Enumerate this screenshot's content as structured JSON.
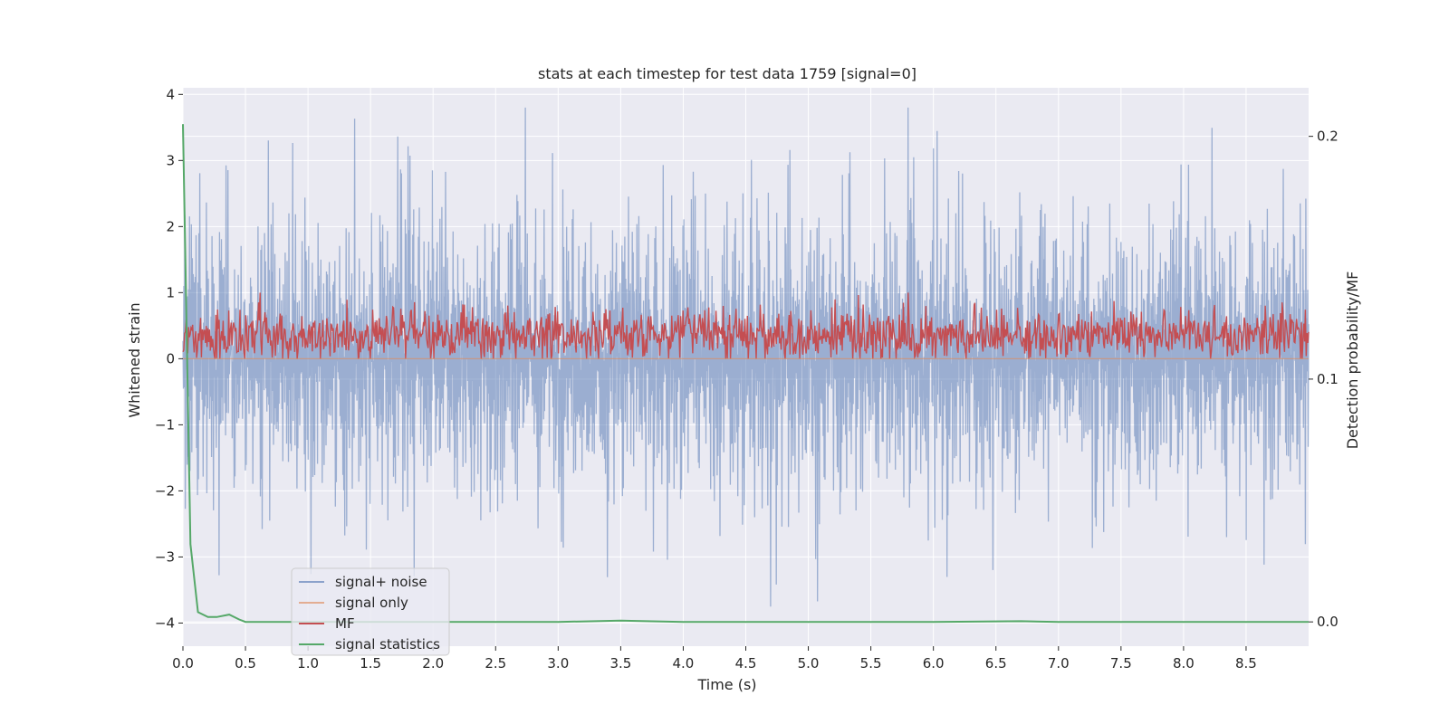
{
  "chart_data": {
    "type": "line",
    "title": "stats at each timestep for test data 1759 [signal=0]",
    "xlabel": "Time (s)",
    "ylabel": "Whitened strain",
    "y2label": "Detection probability/MF",
    "xlim": [
      0,
      9.0
    ],
    "ylim": [
      -4.35,
      4.1
    ],
    "y2lim": [
      -0.01,
      0.22
    ],
    "x_ticks": [
      "0.0",
      "0.5",
      "1.0",
      "1.5",
      "2.0",
      "2.5",
      "3.0",
      "3.5",
      "4.0",
      "4.5",
      "5.0",
      "5.5",
      "6.0",
      "6.5",
      "7.0",
      "7.5",
      "8.0",
      "8.5"
    ],
    "y_ticks": [
      "4",
      "3",
      "2",
      "1",
      "0",
      "−1",
      "−2",
      "−3",
      "−4"
    ],
    "y2_ticks": [
      "0.2",
      "0.1",
      "0.0"
    ],
    "grid": true,
    "legend_position": "lower-left",
    "series": [
      {
        "name": "signal+ noise",
        "color": "#4c72b0",
        "description": "whitened noise, approx. range -4.1 to 3.8",
        "x_range": [
          0,
          9.0
        ],
        "approx_y_range": [
          -4.1,
          3.8
        ]
      },
      {
        "name": "signal only",
        "color": "#dd8452",
        "approx_y_range": [
          0,
          0
        ]
      },
      {
        "name": "MF",
        "color": "#c44e52",
        "approx_y_range": [
          0.0,
          1.0
        ]
      },
      {
        "name": "signal statistics",
        "color": "#55a868",
        "x": [
          0.0,
          0.03,
          0.06,
          0.12,
          0.2,
          0.27,
          0.37,
          0.45,
          0.5,
          1.0,
          2.0,
          3.0,
          3.5,
          4.0,
          5.0,
          6.0,
          6.7,
          7.0,
          8.0,
          9.0
        ],
        "y": [
          0.205,
          0.12,
          0.032,
          0.004,
          0.002,
          0.002,
          0.003,
          0.001,
          0.0,
          0.0,
          0.0,
          0.0,
          0.0005,
          0.0,
          0.0,
          0.0,
          0.0003,
          0.0,
          0.0,
          0.0
        ]
      }
    ]
  }
}
